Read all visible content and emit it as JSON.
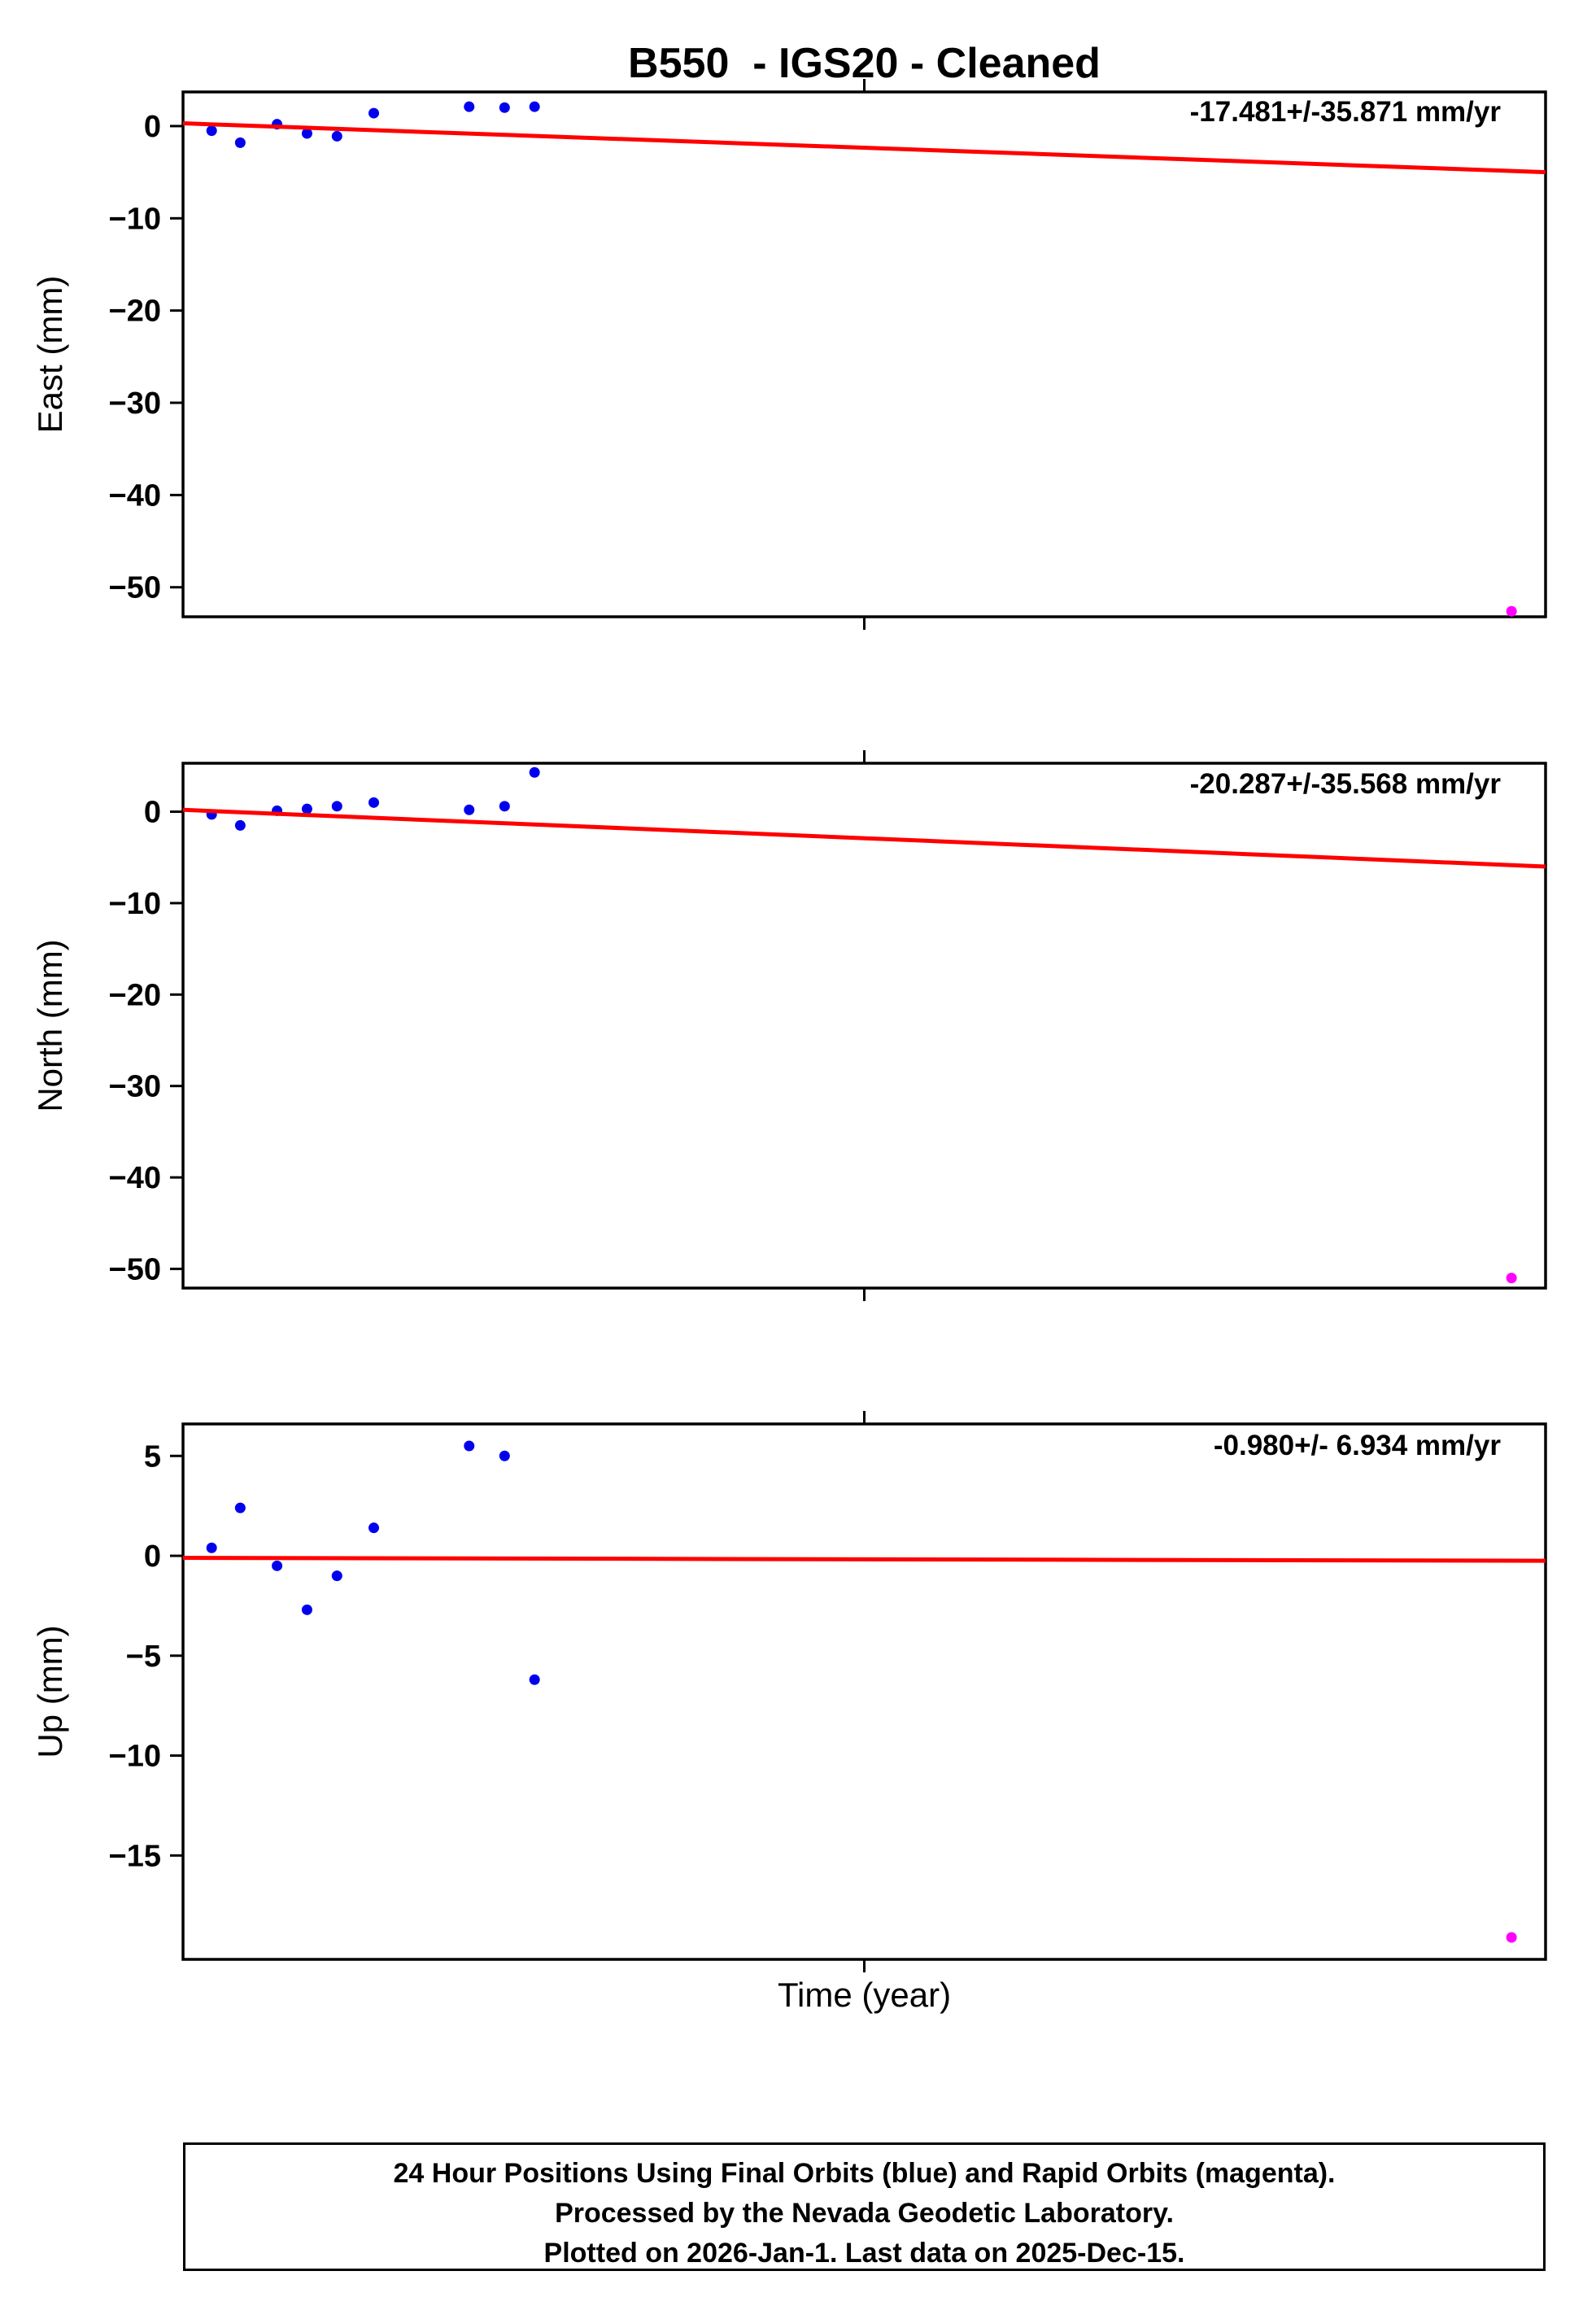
{
  "title": "B550  - IGS20 - Cleaned",
  "xlabel": "Time (year)",
  "footer": {
    "line1": "24 Hour Positions Using Final Orbits (blue) and Rapid Orbits (magenta).",
    "line2": "Processed by the Nevada Geodetic Laboratory.",
    "line3": "Plotted on 2026-Jan-1. Last data on 2025-Dec-15."
  },
  "colors": {
    "final_orbits": "#0000EE",
    "rapid_orbits": "#FF00FF",
    "trend": "#FF0000",
    "axis": "#000000"
  },
  "chart_data": [
    {
      "type": "scatter",
      "name": "East",
      "ylabel": "East (mm)",
      "rate_label": "-17.481+/-35.871 mm/yr",
      "ylim": [
        3.7,
        -53.2
      ],
      "yticks": [
        0,
        -10,
        -20,
        -30,
        -40,
        -50
      ],
      "grid": false,
      "x_axis_note": "x is fraction of axis width; no year tick labels shown",
      "x_tick_frac": [
        0.5
      ],
      "blue_points": {
        "x": [
          0.021,
          0.042,
          0.069,
          0.091,
          0.113,
          0.14,
          0.21,
          0.236,
          0.258
        ],
        "y": [
          -0.5,
          -1.8,
          0.2,
          -0.8,
          -1.1,
          1.4,
          2.1,
          2.0,
          2.1
        ]
      },
      "magenta_points": {
        "x": [
          0.975
        ],
        "y": [
          -52.6
        ]
      },
      "trend": {
        "x": [
          0,
          1
        ],
        "y": [
          0.3,
          -5.0
        ]
      }
    },
    {
      "type": "scatter",
      "name": "North",
      "ylabel": "North (mm)",
      "rate_label": "-20.287+/-35.568 mm/yr",
      "ylim": [
        5.3,
        -52.1
      ],
      "yticks": [
        0,
        -10,
        -20,
        -30,
        -40,
        -50
      ],
      "grid": false,
      "x_axis_note": "x is fraction of axis width; no year tick labels shown",
      "x_tick_frac": [
        0.5
      ],
      "blue_points": {
        "x": [
          0.021,
          0.042,
          0.069,
          0.091,
          0.113,
          0.14,
          0.21,
          0.236,
          0.258
        ],
        "y": [
          -0.3,
          -1.5,
          0.1,
          0.3,
          0.6,
          1.0,
          0.2,
          0.6,
          4.3
        ]
      },
      "magenta_points": {
        "x": [
          0.975
        ],
        "y": [
          -51.0
        ]
      },
      "trend": {
        "x": [
          0,
          1
        ],
        "y": [
          0.2,
          -6.0
        ]
      }
    },
    {
      "type": "scatter",
      "name": "Up",
      "ylabel": "Up (mm)",
      "rate_label": "-0.980+/- 6.934 mm/yr",
      "ylim": [
        6.6,
        -20.2
      ],
      "yticks": [
        5,
        0,
        -5,
        -10,
        -15
      ],
      "grid": false,
      "x_axis_note": "x is fraction of axis width; no year tick labels shown",
      "x_tick_frac": [
        0.5
      ],
      "blue_points": {
        "x": [
          0.021,
          0.042,
          0.069,
          0.091,
          0.113,
          0.14,
          0.21,
          0.236,
          0.258
        ],
        "y": [
          0.4,
          2.4,
          -0.5,
          -2.7,
          -1.0,
          1.4,
          5.5,
          5.0,
          -6.2
        ]
      },
      "magenta_points": {
        "x": [
          0.975
        ],
        "y": [
          -19.1
        ]
      },
      "trend": {
        "x": [
          0,
          1
        ],
        "y": [
          -0.1,
          -0.25
        ]
      }
    }
  ]
}
